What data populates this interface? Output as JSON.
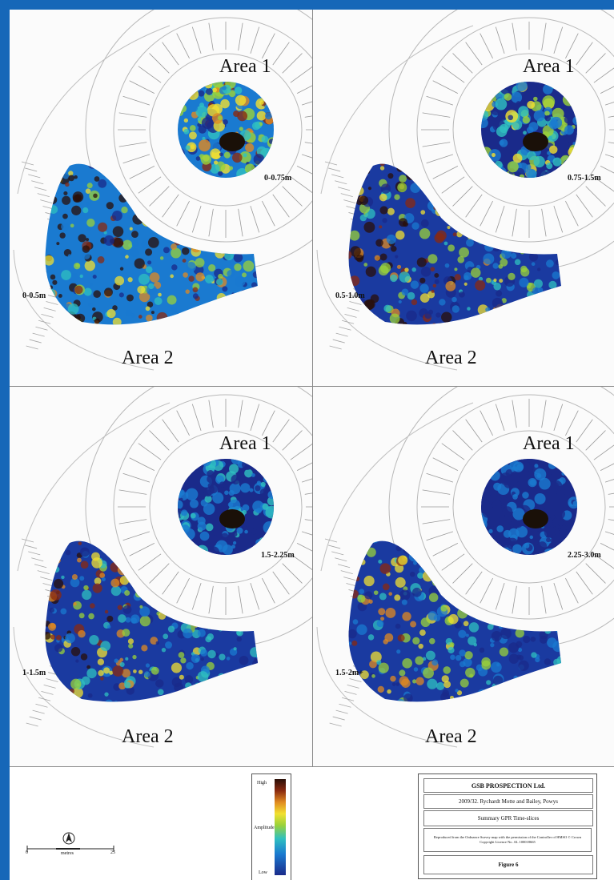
{
  "panels": [
    {
      "area1": "Area 1",
      "area2": "Area 2",
      "depth_area1": "0-0.75m",
      "depth_area2": "0-0.5m",
      "intensity": 0.85
    },
    {
      "area1": "Area 1",
      "area2": "Area 2",
      "depth_area1": "0.75-1.5m",
      "depth_area2": "0.5-1.0m",
      "intensity": 0.55
    },
    {
      "area1": "Area 1",
      "area2": "Area 2",
      "depth_area1": "1.5-2.25m",
      "depth_area2": "1-1.5m",
      "intensity": 0.35
    },
    {
      "area1": "Area 1",
      "area2": "Area 2",
      "depth_area1": "2.25-3.0m",
      "depth_area2": "1.5-2m+",
      "intensity": 0.2
    }
  ],
  "legend": {
    "high": "High",
    "mid": "Amplitude",
    "low": "Low",
    "colors": [
      "#2a0f08",
      "#8a2a10",
      "#e08a20",
      "#f2e030",
      "#9ad23a",
      "#2fc0c0",
      "#1a7ad0",
      "#1a2a8a"
    ]
  },
  "scale_bar": {
    "start": "0",
    "end": "25",
    "unit": "metres",
    "north_icon": "north-arrow-icon"
  },
  "title_block": {
    "company": "GSB PROSPECTION Ltd.",
    "project": "2009/32. Rychardt Motte and Bailey, Powys",
    "subtitle": "Summary GPR Time-slices",
    "copyright": "Reproduced from the Ordnance Survey map with the permission of the Controller of HMSO © Crown Copyright Licence No. AL 100018665",
    "figure": "Figure 6"
  },
  "border_color": "#1667b8"
}
